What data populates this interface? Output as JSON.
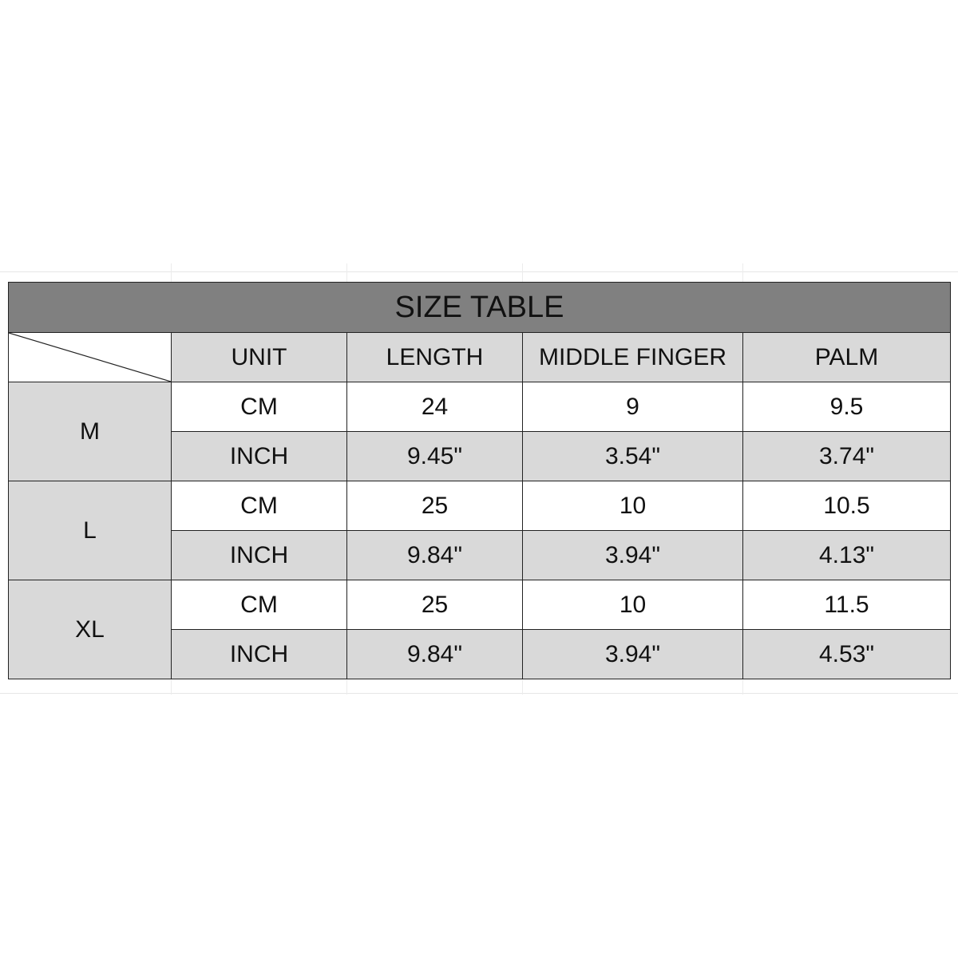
{
  "title": "SIZE TABLE",
  "columns": [
    "UNIT",
    "LENGTH",
    "MIDDLE FINGER",
    "PALM"
  ],
  "sizes": [
    {
      "size": "M",
      "rows": [
        {
          "unit": "CM",
          "length": "24",
          "middle_finger": "9",
          "palm": "9.5"
        },
        {
          "unit": "INCH",
          "length": "9.45\"",
          "middle_finger": "3.54\"",
          "palm": "3.74\""
        }
      ]
    },
    {
      "size": "L",
      "rows": [
        {
          "unit": "CM",
          "length": "25",
          "middle_finger": "10",
          "palm": "10.5"
        },
        {
          "unit": "INCH",
          "length": "9.84\"",
          "middle_finger": "3.94\"",
          "palm": "4.13\""
        }
      ]
    },
    {
      "size": "XL",
      "rows": [
        {
          "unit": "CM",
          "length": "25",
          "middle_finger": "10",
          "palm": "11.5"
        },
        {
          "unit": "INCH",
          "length": "9.84\"",
          "middle_finger": "3.94\"",
          "palm": "4.53\""
        }
      ]
    }
  ],
  "colors": {
    "title_bg": "#808080",
    "header_bg": "#d9d9d9",
    "alt_row_bg": "#d9d9d9",
    "border": "#222222"
  }
}
